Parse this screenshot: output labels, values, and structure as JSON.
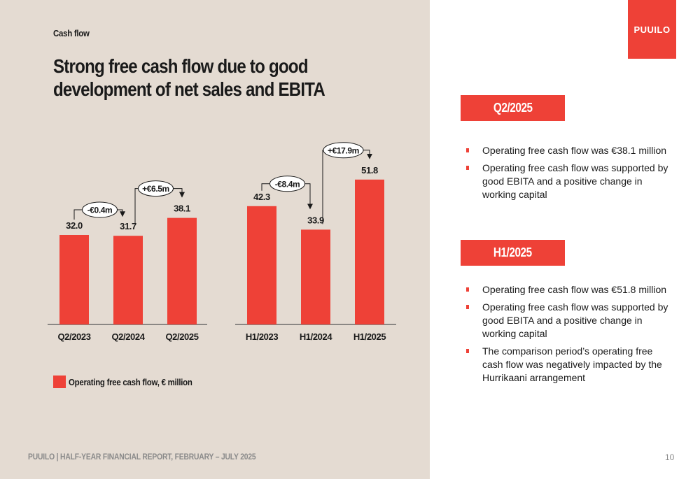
{
  "header": {
    "section_label": "Cash flow",
    "headline": "Strong free cash flow due to good development of net sales and EBITA",
    "logo_text": "PUUILO"
  },
  "colors": {
    "accent": "#ee4137",
    "panel_bg": "#e4dbd2",
    "axis": "#555555"
  },
  "chart_data": [
    {
      "type": "bar",
      "categories": [
        "Q2/2023",
        "Q2/2024",
        "Q2/2025"
      ],
      "values": [
        32.0,
        31.7,
        38.1
      ],
      "value_labels": [
        "32.0",
        "31.7",
        "38.1"
      ],
      "series": [
        {
          "name": "Operating free cash flow, € million",
          "values": [
            32.0,
            31.7,
            38.1
          ]
        }
      ],
      "annotations": [
        {
          "label": "-€0.4m",
          "from": 0,
          "to": 1
        },
        {
          "label": "+€6.5m",
          "from": 1,
          "to": 2
        }
      ]
    },
    {
      "type": "bar",
      "categories": [
        "H1/2023",
        "H1/2024",
        "H1/2025"
      ],
      "values": [
        42.3,
        33.9,
        51.8
      ],
      "value_labels": [
        "42.3",
        "33.9",
        "51.8"
      ],
      "series": [
        {
          "name": "Operating free cash flow, € million",
          "values": [
            42.3,
            33.9,
            51.8
          ]
        }
      ],
      "annotations": [
        {
          "label": "-€8.4m",
          "from": 0,
          "to": 1
        },
        {
          "label": "+€17.9m",
          "from": 1,
          "to": 2
        }
      ]
    }
  ],
  "legend": {
    "label": "Operating free cash flow, € million"
  },
  "q2": {
    "title": "Q2/2025",
    "bullets": [
      "Operating free cash flow was €38.1 million",
      "Operating free cash flow was supported by good EBITA and a positive change in working capital"
    ]
  },
  "h1": {
    "title": "H1/2025",
    "bullets": [
      "Operating free cash flow was €51.8 million",
      "Operating free cash flow was supported by good EBITA and a positive change in working capital",
      "The comparison period’s operating free cash flow was negatively impacted by the Hurrikaani arrangement"
    ]
  },
  "footer": {
    "text": "PUUILO | HALF-YEAR FINANCIAL REPORT, FEBRUARY – JULY 2025",
    "page_number": "10"
  }
}
